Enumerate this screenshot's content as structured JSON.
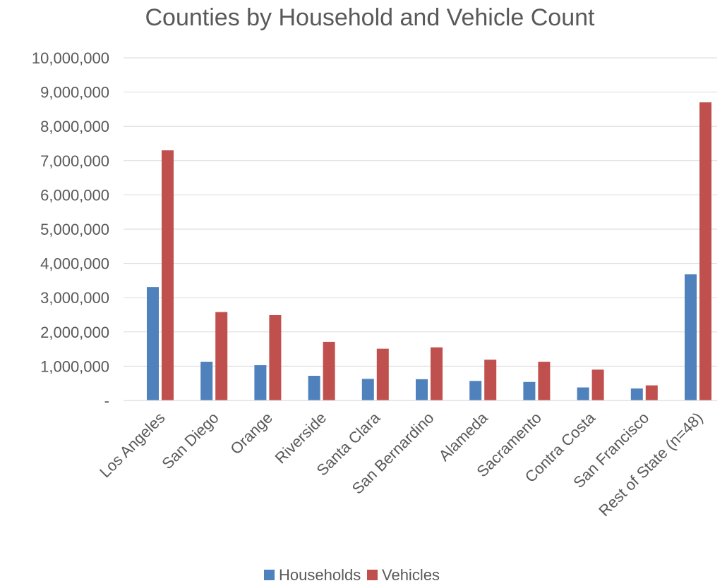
{
  "chart_data": {
    "type": "bar",
    "title": "Counties by Household and Vehicle Count",
    "xlabel": "",
    "ylabel": "",
    "categories": [
      "Los Angeles",
      "San Diego",
      "Orange",
      "Riverside",
      "Santa Clara",
      "San Bernardino",
      "Alameda",
      "Sacramento",
      "Contra Costa",
      "San Francisco",
      "Rest of State (n=48)"
    ],
    "series": [
      {
        "name": "Households",
        "color": "#4f81bd",
        "values": [
          3310000,
          1130000,
          1030000,
          720000,
          630000,
          620000,
          570000,
          540000,
          380000,
          350000,
          3680000
        ]
      },
      {
        "name": "Vehicles",
        "color": "#c0504d",
        "values": [
          7300000,
          2580000,
          2490000,
          1710000,
          1510000,
          1550000,
          1190000,
          1130000,
          900000,
          440000,
          8700000
        ]
      }
    ],
    "ylim": [
      0,
      10000000
    ],
    "yticks": [
      0,
      1000000,
      2000000,
      3000000,
      4000000,
      5000000,
      6000000,
      7000000,
      8000000,
      9000000,
      10000000
    ],
    "ytick_labels": [
      "-",
      "1,000,000",
      "2,000,000",
      "3,000,000",
      "4,000,000",
      "5,000,000",
      "6,000,000",
      "7,000,000",
      "8,000,000",
      "9,000,000",
      "10,000,000"
    ],
    "grid": true,
    "legend": "bottom"
  }
}
